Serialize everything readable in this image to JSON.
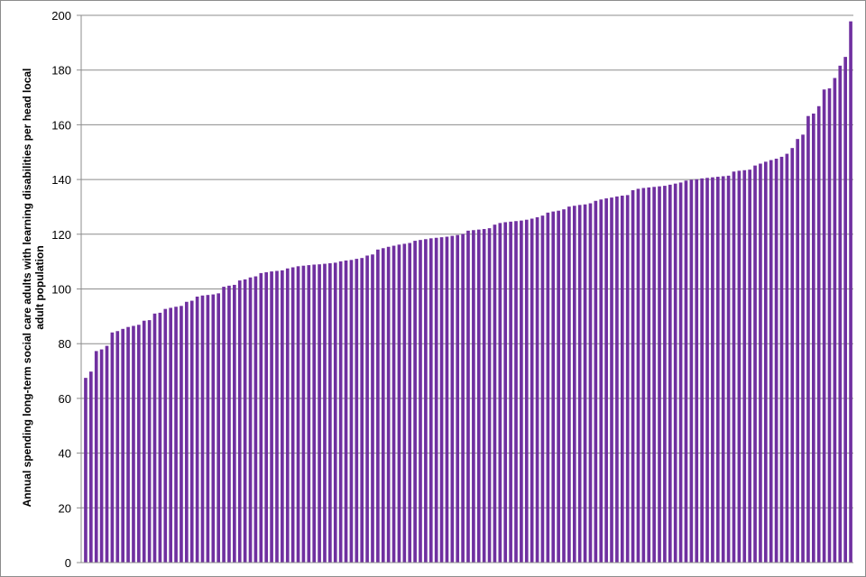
{
  "chart_data": {
    "type": "bar",
    "title": "",
    "xlabel": "",
    "ylabel": "Annual spending long-term social care adults  with learning disabilities  per head local adult population",
    "ylim": [
      0,
      200
    ],
    "yticks": [
      0,
      20,
      40,
      60,
      80,
      100,
      120,
      140,
      160,
      180,
      200
    ],
    "grid": true,
    "legend": "none",
    "bar_color": "#7030A0",
    "sorted": "ascending",
    "values": [
      67.5,
      69.8,
      77.3,
      77.9,
      79.2,
      84.1,
      84.6,
      85.4,
      86.1,
      86.5,
      86.9,
      88.4,
      88.6,
      91.0,
      91.3,
      92.7,
      93.1,
      93.5,
      93.8,
      95.3,
      95.7,
      97.2,
      97.6,
      97.8,
      98.0,
      98.4,
      100.8,
      101.2,
      101.5,
      103.1,
      103.5,
      104.2,
      104.6,
      105.8,
      106.1,
      106.4,
      106.6,
      106.8,
      107.5,
      107.9,
      108.3,
      108.5,
      108.7,
      108.9,
      109.0,
      109.2,
      109.4,
      109.6,
      110.1,
      110.4,
      110.6,
      111.0,
      111.3,
      112.2,
      112.6,
      114.4,
      114.9,
      115.4,
      115.8,
      116.2,
      116.5,
      116.8,
      117.6,
      117.9,
      118.2,
      118.5,
      118.7,
      118.9,
      119.1,
      119.4,
      119.7,
      120.1,
      121.3,
      121.5,
      121.7,
      121.9,
      122.2,
      123.5,
      124.1,
      124.4,
      124.6,
      124.8,
      125.0,
      125.3,
      125.7,
      126.2,
      126.8,
      127.9,
      128.3,
      128.6,
      129.1,
      130.1,
      130.4,
      130.7,
      130.9,
      131.3,
      132.2,
      132.7,
      133.1,
      133.4,
      133.8,
      134.1,
      134.3,
      136.1,
      136.6,
      136.9,
      137.1,
      137.3,
      137.5,
      137.7,
      138.1,
      138.5,
      138.9,
      139.6,
      139.9,
      140.1,
      140.4,
      140.6,
      140.8,
      141.0,
      141.2,
      141.4,
      142.9,
      143.2,
      143.4,
      143.6,
      145.1,
      145.8,
      146.5,
      147.1,
      147.6,
      148.3,
      149.4,
      151.5,
      154.8,
      156.4,
      163.2,
      164.1,
      166.8,
      172.9,
      173.3,
      177.1,
      181.6,
      184.8,
      197.8
    ]
  }
}
